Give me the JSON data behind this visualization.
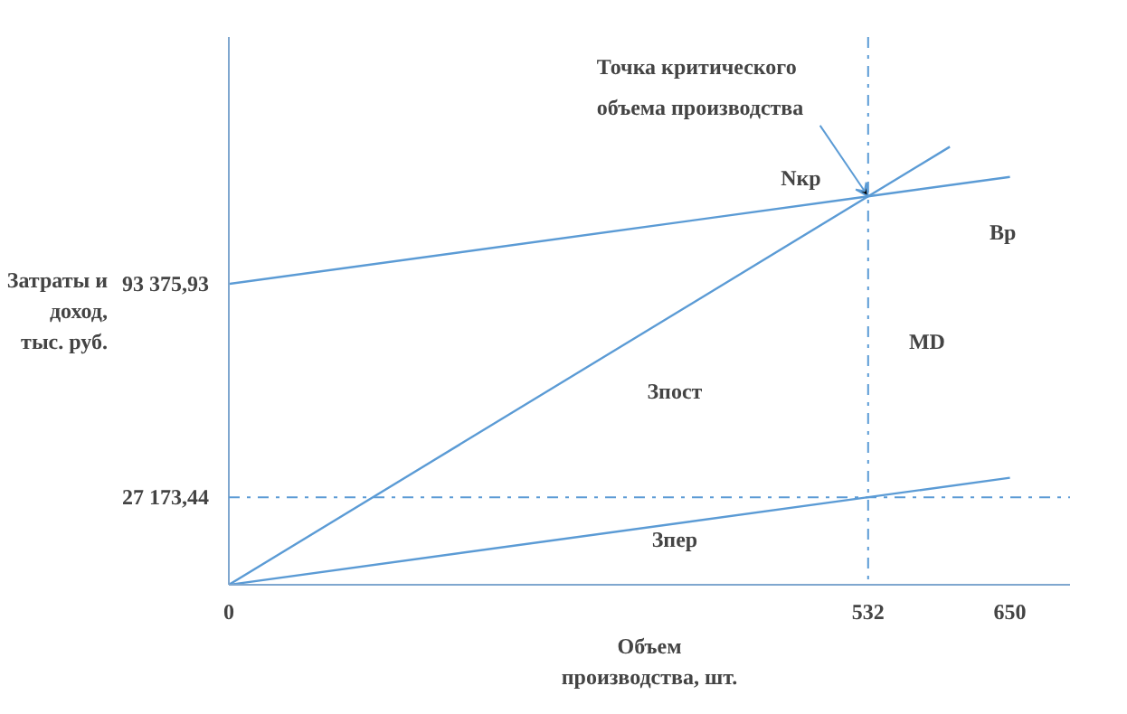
{
  "chart_data": {
    "type": "line",
    "xlabel": "Объем\nпроизводства, шт.",
    "ylabel": "Затраты и\nдоход,\nтыс. руб.",
    "xlim": [
      0,
      700
    ],
    "ylim": [
      0,
      170000
    ],
    "xticks": [
      0,
      532,
      650
    ],
    "yticks": [
      {
        "value": 27173.44,
        "label": "27 173,44"
      },
      {
        "value": 93375.93,
        "label": "93 375,93"
      }
    ],
    "grid": false,
    "marker": "none",
    "line_style": "solid",
    "series": [
      {
        "color": "#5b9bd5",
        "x": [
          0,
          532,
          600
        ],
        "values": [
          0,
          120549,
          135958
        ]
      },
      {
        "color": "#5b9bd5",
        "x": [
          0,
          532,
          650
        ],
        "values": [
          93376,
          120549,
          126577
        ]
      },
      {
        "color": "#5b9bd5",
        "x": [
          0,
          532,
          650
        ],
        "values": [
          0,
          27173,
          33201
        ]
      }
    ],
    "ref_lines": [
      {
        "axis": "x",
        "value": 532,
        "label": null,
        "color": "#5b9bd5",
        "line_style": "dashdot"
      },
      {
        "axis": "y",
        "value": 27173.44,
        "label": null,
        "color": "#5b9bd5",
        "line_style": "dashdot"
      }
    ],
    "annotations": [
      {
        "text": "Точка критического\nобъема производства",
        "x": 532,
        "y": 120549
      },
      "Nкр",
      "Зпост",
      "Зпер",
      "MD",
      "Вр"
    ]
  }
}
